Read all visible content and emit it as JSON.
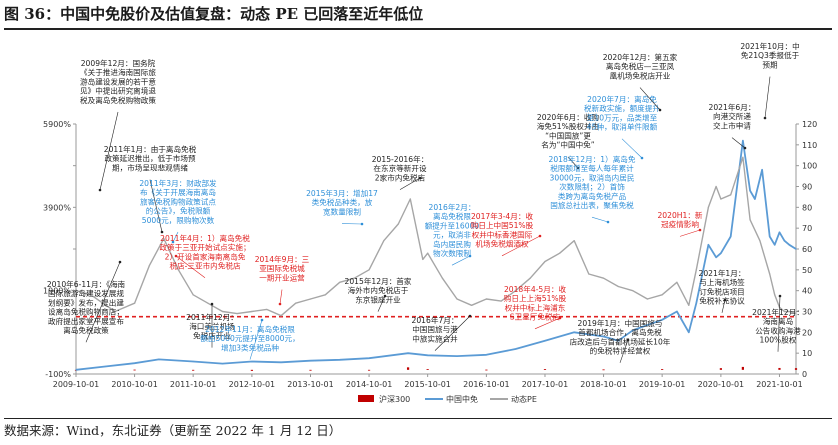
{
  "figure": {
    "title": "图 36：中国中免股价及估值复盘：动态 PE 已回落至近年低位",
    "source": "数据来源：Wind，东北证券（更新至 2022 年 1 月 12 日）"
  },
  "colors": {
    "hs300": "#c00000",
    "stock": "#5b9bd5",
    "pe": "#a6a6a6",
    "refline": "#e02020",
    "ann_black": "#222222",
    "ann_blue": "#2e8fd8",
    "ann_red": "#e02020"
  },
  "chart_data": {
    "type": "line",
    "x_ticks": [
      "2009-10-01",
      "2010-10-01",
      "2011-10-01",
      "2012-10-01",
      "2013-10-01",
      "2014-10-01",
      "2015-10-01",
      "2016-10-01",
      "2017-10-01",
      "2018-10-01",
      "2019-10-01",
      "2020-10-01",
      "2021-10-01"
    ],
    "xlim": [
      "2009-10-01",
      "2022-01-12"
    ],
    "y_left": {
      "ticks": [
        "-100%",
        "1900%",
        "3900%",
        "5900%"
      ],
      "extra_ticks": [
        "900%",
        "2900%",
        "4900%"
      ],
      "range": [
        -100,
        5900
      ]
    },
    "y_right": {
      "ticks": [
        0,
        10,
        20,
        30,
        40,
        50,
        60,
        70,
        80,
        90,
        100,
        110,
        120
      ],
      "range": [
        0,
        120
      ]
    },
    "reference_line": {
      "axis": "right",
      "value": 27.5,
      "style": "dashed"
    },
    "legend": {
      "placement": "bottom",
      "entries": [
        "沪深300",
        "中国中免",
        "动态PE"
      ]
    },
    "series": [
      {
        "name": "沪深300",
        "axis": "left",
        "style": "bar",
        "x": [
          "2009-10-01",
          "2010-10-01",
          "2011-10-01",
          "2012-10-01",
          "2013-10-01",
          "2014-10-01",
          "2015-06-01",
          "2015-10-01",
          "2016-10-01",
          "2017-10-01",
          "2018-10-01",
          "2019-10-01",
          "2020-10-01",
          "2021-02-15",
          "2021-10-01",
          "2022-01-12"
        ],
        "values": [
          0,
          5,
          -20,
          -25,
          -20,
          -15,
          60,
          20,
          5,
          20,
          10,
          20,
          40,
          70,
          45,
          40
        ]
      },
      {
        "name": "中国中免",
        "axis": "left",
        "style": "line",
        "x": [
          "2009-10-01",
          "2010-04-01",
          "2010-10-01",
          "2011-03-01",
          "2011-10-01",
          "2012-04-01",
          "2012-10-01",
          "2013-04-01",
          "2013-10-01",
          "2014-04-01",
          "2014-10-01",
          "2015-06-01",
          "2015-10-01",
          "2016-04-01",
          "2016-10-01",
          "2017-04-01",
          "2017-10-01",
          "2018-04-01",
          "2018-10-01",
          "2019-01-01",
          "2019-04-01",
          "2019-10-01",
          "2020-01-01",
          "2020-03-15",
          "2020-05-01",
          "2020-07-15",
          "2020-09-01",
          "2020-10-01",
          "2020-12-01",
          "2021-02-15",
          "2021-04-01",
          "2021-05-01",
          "2021-06-15",
          "2021-08-01",
          "2021-09-01",
          "2021-10-01",
          "2021-11-01",
          "2021-12-01",
          "2022-01-12"
        ],
        "values": [
          0,
          80,
          160,
          250,
          200,
          150,
          200,
          180,
          220,
          240,
          280,
          400,
          350,
          330,
          360,
          500,
          700,
          900,
          800,
          700,
          950,
          1200,
          1400,
          900,
          1600,
          3000,
          2700,
          2800,
          3200,
          5500,
          4300,
          4100,
          4800,
          3200,
          3000,
          3300,
          3100,
          3000,
          2900
        ]
      },
      {
        "name": "动态PE",
        "axis": "right",
        "style": "line",
        "x": [
          "2009-10-01",
          "2010-01-01",
          "2010-06-01",
          "2010-10-01",
          "2011-01-01",
          "2011-04-01",
          "2011-07-01",
          "2011-10-01",
          "2012-01-01",
          "2012-04-01",
          "2012-07-01",
          "2012-10-01",
          "2013-01-01",
          "2013-04-01",
          "2013-07-01",
          "2013-10-01",
          "2014-01-01",
          "2014-04-01",
          "2014-07-01",
          "2014-10-01",
          "2015-01-01",
          "2015-04-01",
          "2015-06-15",
          "2015-09-01",
          "2015-10-01",
          "2016-01-01",
          "2016-04-01",
          "2016-07-01",
          "2016-10-01",
          "2017-01-01",
          "2017-04-01",
          "2017-07-01",
          "2017-10-01",
          "2018-01-01",
          "2018-04-01",
          "2018-07-01",
          "2018-10-01",
          "2019-01-01",
          "2019-04-01",
          "2019-07-01",
          "2019-10-01",
          "2020-01-01",
          "2020-03-15",
          "2020-05-01",
          "2020-07-15",
          "2020-09-01",
          "2020-10-01",
          "2020-12-01",
          "2021-02-15",
          "2021-04-01",
          "2021-06-01",
          "2021-08-01",
          "2021-09-01",
          "2021-10-01",
          "2021-11-01",
          "2021-12-01",
          "2022-01-12"
        ],
        "values": [
          40,
          38,
          30,
          34,
          52,
          65,
          50,
          38,
          34,
          30,
          29,
          30,
          31,
          28,
          34,
          36,
          38,
          44,
          46,
          50,
          64,
          72,
          84,
          55,
          58,
          46,
          36,
          33,
          36,
          35,
          40,
          46,
          54,
          58,
          64,
          48,
          46,
          42,
          40,
          36,
          38,
          44,
          33,
          50,
          80,
          90,
          84,
          86,
          104,
          74,
          64,
          48,
          38,
          32,
          30,
          30,
          29
        ]
      }
    ]
  },
  "annotations": [
    {
      "color": "ann_black",
      "lines": [
        "2009年12月：国务院",
        "《关于推进海南国际旅",
        "游岛建设发展的若干意",
        "见》中提出研究离境退",
        "税及离岛免税购物政策"
      ]
    },
    {
      "color": "ann_black",
      "lines": [
        "2011年1月：由于离岛免税",
        "政策延迟推出，低于市场预",
        "期，市场呈现悲观情绪"
      ]
    },
    {
      "color": "ann_blue",
      "lines": [
        "2011年3月：财政部发",
        "布《关于开展海南离岛",
        "旅客免税购物政策试点",
        "的公告》，免税限额",
        "5000元，限购物次数"
      ]
    },
    {
      "color": "ann_red",
      "lines": [
        "2011年4月：1）离岛免税",
        "政策于三亚开始试点实施；",
        "2）开设首家海南离岛免",
        "税店-三亚市内免税店"
      ]
    },
    {
      "color": "ann_black",
      "lines": [
        "2010年6-11月：《海南",
        "国际旅游岛建设发展规",
        "划纲要》发布，提出建",
        "设离岛免税购物商店；",
        "政府提出家堂平展宣布",
        "离岛免税政策"
      ]
    },
    {
      "color": "ann_black",
      "lines": [
        "2011年12月：",
        "海口美兰机场",
        "免税店开业"
      ]
    },
    {
      "color": "ann_blue",
      "lines": [
        "2012年11月：离岛免税限",
        "额由5000元提升至8000元，",
        "增加3类免税品种"
      ]
    },
    {
      "color": "ann_red",
      "lines": [
        "2014年9月：三",
        "亚国际免税城",
        "一期开业运营"
      ]
    },
    {
      "color": "ann_blue",
      "lines": [
        "2015年3月：增加17",
        "类免税品种类，放",
        "宽数量限制"
      ]
    },
    {
      "color": "ann_black",
      "lines": [
        "2015年12月：首家",
        "海外市内免税店于",
        "东京银座开业"
      ]
    },
    {
      "color": "ann_black",
      "lines": [
        "2015-2016年：",
        "在东京等新开设",
        "2家市内免税店"
      ]
    },
    {
      "color": "ann_blue",
      "lines": [
        "2016年2月：",
        "离岛免税限",
        "额提升至16000",
        "元，取消非",
        "岛内居民购",
        "物次数限制"
      ]
    },
    {
      "color": "ann_black",
      "lines": [
        "2016年7月：",
        "中国国旅与港",
        "中旅实施合并"
      ]
    },
    {
      "color": "ann_red",
      "lines": [
        "2017年3-4月：收",
        "购日上中国51%股",
        "权并中标香港国际",
        "机场免税烟酒权"
      ]
    },
    {
      "color": "ann_red",
      "lines": [
        "2018年4-5月：收",
        "购日上上海51%股",
        "权并中标上海浦东",
        "S卫星厅免税店"
      ]
    },
    {
      "color": "ann_black",
      "lines": [
        "2020年6月：收购",
        "海免51%股权并由",
        "“中国国旅”更",
        "名为“中国中免”"
      ]
    },
    {
      "color": "ann_blue",
      "lines": [
        "2018年12月：1）离岛免",
        "税限额增至每人每年累计",
        "30000元，取消岛内居民",
        "次数限制；2）首饰",
        "类跨为离岛免税产品",
        "国旅总社出表，聚焦免税"
      ]
    },
    {
      "color": "ann_blue",
      "lines": [
        "2020年7月：离岛免",
        "税新政实施，额度提升",
        "至10万元，品类增至",
        "45种，取消单件限额"
      ]
    },
    {
      "color": "ann_black",
      "lines": [
        "2020年12月：第五家",
        "离岛免税店—三亚凤",
        "凰机场免税店开业"
      ]
    },
    {
      "color": "ann_red",
      "lines": [
        "2020H1：新",
        "冠疫情影响"
      ]
    },
    {
      "color": "ann_black",
      "lines": [
        "2021年10月：中",
        "免21Q3季报低于",
        "预期"
      ]
    },
    {
      "color": "ann_black",
      "lines": [
        "2021年6月：",
        "向港交所递",
        "交上市申请"
      ]
    },
    {
      "color": "ann_black",
      "lines": [
        "2019年1月：中国国旅与",
        "首都机场合作，离岛免税",
        "店改造后与首都机场延长10年",
        "的免税特许经营权"
      ]
    },
    {
      "color": "ann_black",
      "lines": [
        "2021年1月：",
        "与上海机场签",
        "订免税店项目",
        "免税补充协议"
      ]
    },
    {
      "color": "ann_black",
      "lines": [
        "2021年12月：",
        "海南离岛",
        "公告收购海港",
        "100%股权"
      ]
    }
  ]
}
